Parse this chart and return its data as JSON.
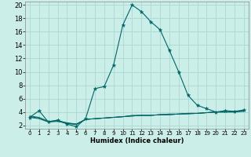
{
  "xlabel": "Humidex (Indice chaleur)",
  "bg_color": "#cceee8",
  "grid_color": "#aad8d4",
  "line_color": "#006666",
  "xlim": [
    -0.5,
    23.5
  ],
  "ylim": [
    1.5,
    20.5
  ],
  "xticks": [
    0,
    1,
    2,
    3,
    4,
    5,
    6,
    7,
    8,
    9,
    10,
    11,
    12,
    13,
    14,
    15,
    16,
    17,
    18,
    19,
    20,
    21,
    22,
    23
  ],
  "yticks": [
    2,
    4,
    6,
    8,
    10,
    12,
    14,
    16,
    18,
    20
  ],
  "main_line": [
    3.2,
    4.2,
    2.5,
    2.8,
    2.2,
    1.8,
    3.0,
    7.5,
    7.8,
    11.0,
    17.0,
    20.0,
    19.0,
    17.5,
    16.3,
    13.2,
    10.0,
    6.5,
    5.0,
    4.5,
    4.0,
    4.2,
    4.1,
    4.3
  ],
  "line2": [
    3.2,
    3.0,
    2.5,
    2.6,
    2.3,
    2.2,
    2.9,
    3.0,
    3.1,
    3.2,
    3.3,
    3.4,
    3.5,
    3.5,
    3.6,
    3.6,
    3.7,
    3.8,
    3.8,
    3.9,
    4.0,
    4.0,
    4.1,
    4.2
  ],
  "line3": [
    3.3,
    3.1,
    2.6,
    2.7,
    2.3,
    2.1,
    2.9,
    3.0,
    3.1,
    3.2,
    3.3,
    3.4,
    3.5,
    3.5,
    3.6,
    3.6,
    3.7,
    3.7,
    3.8,
    3.9,
    4.0,
    4.0,
    4.0,
    4.1
  ],
  "line4": [
    3.4,
    3.2,
    2.6,
    2.7,
    2.4,
    2.2,
    2.9,
    3.0,
    3.1,
    3.2,
    3.3,
    3.5,
    3.5,
    3.5,
    3.6,
    3.7,
    3.7,
    3.8,
    3.8,
    3.9,
    4.0,
    4.0,
    4.0,
    4.2
  ],
  "xlabel_fontsize": 6,
  "xlabel_fontweight": "bold",
  "tick_x_fontsize": 5,
  "tick_y_fontsize": 6
}
